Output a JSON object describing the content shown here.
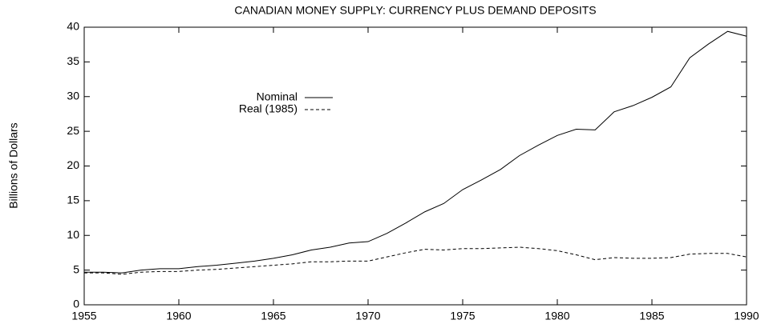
{
  "chart_data": {
    "type": "line",
    "title": "CANADIAN MONEY SUPPLY: CURRENCY PLUS DEMAND DEPOSITS",
    "y_label": "Billions of Dollars",
    "x": [
      1955,
      1956,
      1957,
      1958,
      1959,
      1960,
      1961,
      1962,
      1963,
      1964,
      1965,
      1966,
      1967,
      1968,
      1969,
      1970,
      1971,
      1972,
      1973,
      1974,
      1975,
      1976,
      1977,
      1978,
      1979,
      1980,
      1981,
      1982,
      1983,
      1984,
      1985,
      1986,
      1987,
      1988,
      1989,
      1990
    ],
    "series": [
      {
        "name": "Nominal",
        "color": "#000000",
        "style": "solid",
        "values": [
          4.7,
          4.7,
          4.6,
          5.0,
          5.2,
          5.2,
          5.5,
          5.7,
          6.0,
          6.3,
          6.7,
          7.2,
          7.9,
          8.3,
          8.9,
          9.1,
          10.3,
          11.8,
          13.4,
          14.6,
          16.6,
          18.0,
          19.5,
          21.5,
          23.0,
          24.4,
          25.3,
          25.2,
          27.8,
          28.7,
          29.9,
          31.4,
          35.6,
          37.6,
          39.4,
          38.7
        ]
      },
      {
        "name": "Real (1985)",
        "color": "#000000",
        "style": "dashed",
        "values": [
          4.6,
          4.6,
          4.4,
          4.7,
          4.8,
          4.8,
          5.0,
          5.1,
          5.3,
          5.5,
          5.7,
          5.9,
          6.2,
          6.2,
          6.3,
          6.3,
          6.9,
          7.5,
          8.0,
          7.9,
          8.1,
          8.1,
          8.2,
          8.3,
          8.1,
          7.8,
          7.2,
          6.5,
          6.8,
          6.7,
          6.7,
          6.8,
          7.3,
          7.4,
          7.4,
          6.9
        ]
      }
    ],
    "xlim": [
      1955,
      1990
    ],
    "xticks": [
      1955,
      1960,
      1965,
      1970,
      1975,
      1980,
      1985,
      1990
    ],
    "ylim": [
      0,
      40
    ],
    "yticks": [
      0,
      5,
      10,
      15,
      20,
      25,
      30,
      35,
      40
    ]
  }
}
